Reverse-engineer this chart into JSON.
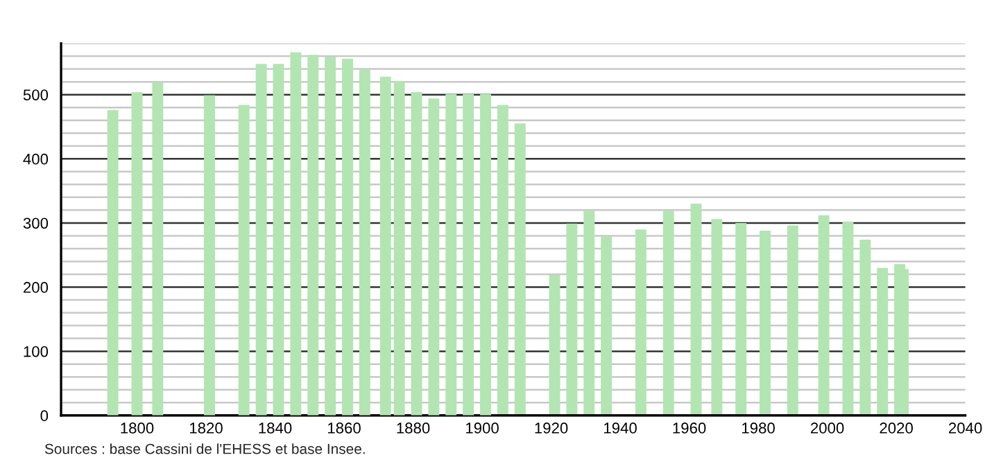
{
  "chart_data": {
    "type": "bar",
    "x": [
      1793,
      1800,
      1806,
      1821,
      1831,
      1836,
      1841,
      1846,
      1851,
      1856,
      1861,
      1866,
      1872,
      1876,
      1881,
      1886,
      1891,
      1896,
      1901,
      1906,
      1911,
      1921,
      1926,
      1931,
      1936,
      1946,
      1954,
      1962,
      1968,
      1975,
      1982,
      1990,
      1999,
      2006,
      2011,
      2016,
      2021,
      2022
    ],
    "values": [
      476,
      504,
      520,
      499,
      484,
      548,
      548,
      566,
      562,
      559,
      556,
      539,
      528,
      521,
      504,
      494,
      501,
      501,
      501,
      484,
      455,
      219,
      299,
      319,
      279,
      290,
      319,
      330,
      306,
      300,
      288,
      296,
      312,
      301,
      274,
      230,
      236,
      228
    ],
    "color": "#b2e5b2",
    "xlim": [
      1778,
      2040
    ],
    "xticks": [
      1800,
      1820,
      1840,
      1860,
      1880,
      1900,
      1920,
      1940,
      1960,
      1980,
      2000,
      2020,
      2040
    ],
    "ylim": [
      0,
      580
    ],
    "yticks": [
      0,
      {
        "value": 20,
        "label": null
      },
      {
        "value": 40,
        "label": null
      },
      {
        "value": 60,
        "label": null
      },
      {
        "value": 80,
        "label": null
      },
      100,
      {
        "value": 120,
        "label": null
      },
      {
        "value": 140,
        "label": null
      },
      {
        "value": 160,
        "label": null
      },
      {
        "value": 180,
        "label": null
      },
      200,
      {
        "value": 220,
        "label": null
      },
      {
        "value": 240,
        "label": null
      },
      {
        "value": 260,
        "label": null
      },
      {
        "value": 280,
        "label": null
      },
      300,
      {
        "value": 320,
        "label": null
      },
      {
        "value": 340,
        "label": null
      },
      {
        "value": 360,
        "label": null
      },
      {
        "value": 380,
        "label": null
      },
      400,
      {
        "value": 420,
        "label": null
      },
      {
        "value": 440,
        "label": null
      },
      {
        "value": 460,
        "label": null
      },
      {
        "value": 480,
        "label": null
      },
      500,
      {
        "value": 520,
        "label": null
      },
      {
        "value": 540,
        "label": null
      },
      {
        "value": 560,
        "label": null
      },
      {
        "value": 580,
        "label": null
      }
    ],
    "grid": "y",
    "annotations": [
      "Sources : base Cassini de l'EHESS et base Insee."
    ]
  }
}
